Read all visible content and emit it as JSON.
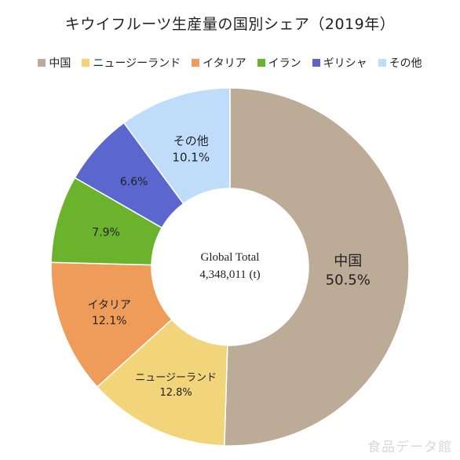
{
  "chart_data": {
    "type": "pie",
    "variant": "donut",
    "title": "キウイフルーツ生産量の国別シェア（2019年）",
    "legend_position": "top",
    "categories": [
      "中国",
      "ニュージーランド",
      "イタリア",
      "イラン",
      "ギリシャ",
      "その他"
    ],
    "values": [
      50.5,
      12.8,
      12.1,
      7.9,
      6.6,
      10.1
    ],
    "value_labels": [
      "50.5%",
      "12.8%",
      "12.1%",
      "7.9%",
      "6.6%",
      "10.1%"
    ],
    "colors": [
      "#bcab97",
      "#f2d47b",
      "#ef9c5a",
      "#6bb22d",
      "#5b67cf",
      "#bfdcfb"
    ],
    "center_label": {
      "line1": "Global Total",
      "line2": "4,348,011 (t)"
    }
  },
  "watermark": "食品データ館"
}
